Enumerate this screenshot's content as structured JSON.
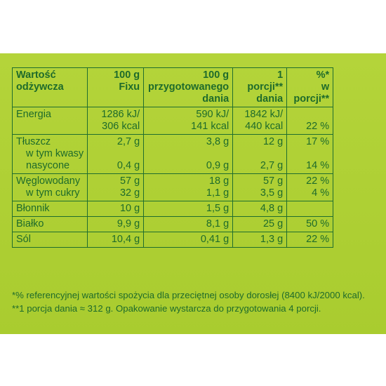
{
  "header": {
    "col0": [
      "Wartość",
      "odżywcza"
    ],
    "col1": [
      "100 g",
      "Fixu"
    ],
    "col2": [
      "100 g",
      "przygotowanego",
      "dania"
    ],
    "col3": [
      "1",
      "porcji**",
      "dania"
    ],
    "col4": [
      "%*",
      "w",
      "porcji**"
    ]
  },
  "rows": {
    "energia": {
      "label": "Energia",
      "c1": [
        "1286 kJ/",
        "306 kcal"
      ],
      "c2": [
        "590 kJ/",
        "141 kcal"
      ],
      "c3": [
        "1842 kJ/",
        "440 kcal"
      ],
      "c4": "22 %"
    },
    "tluszcz": {
      "label": "Tłuszcz",
      "c1": "2,7 g",
      "c2": "3,8 g",
      "c3": "12 g",
      "c4": "17 %",
      "sub_label": [
        "w tym kwasy",
        "nasycone"
      ],
      "sub_c1": "0,4 g",
      "sub_c2": "0,9 g",
      "sub_c3": "2,7 g",
      "sub_c4": "14 %"
    },
    "weglowodany": {
      "label": "Węglowodany",
      "c1": "57 g",
      "c2": "18 g",
      "c3": "57 g",
      "c4": "22 %",
      "sub_label": "w tym cukry",
      "sub_c1": "32 g",
      "sub_c2": "1,1 g",
      "sub_c3": "3,5 g",
      "sub_c4": "4 %"
    },
    "blonnik": {
      "label": "Błonnik",
      "c1": "10 g",
      "c2": "1,5 g",
      "c3": "4,8 g",
      "c4": ""
    },
    "bialko": {
      "label": "Białko",
      "c1": "9,9 g",
      "c2": "8,1 g",
      "c3": "25 g",
      "c4": "50 %"
    },
    "sol": {
      "label": "Sól",
      "c1": "10,4 g",
      "c2": "0,41 g",
      "c3": "1,3 g",
      "c4": "22 %"
    }
  },
  "footnotes": [
    "*% referencyjnej wartości spożycia dla przeciętnej osoby dorosłej (8400 kJ/2000 kcal).",
    "**1 porcja dania ≈ 312 g. Opakowanie wystarcza do przygotowania 4 porcji."
  ],
  "colors": {
    "panel": "#b0d236",
    "text": "#1e6b2b",
    "border": "#1f6e2e"
  }
}
